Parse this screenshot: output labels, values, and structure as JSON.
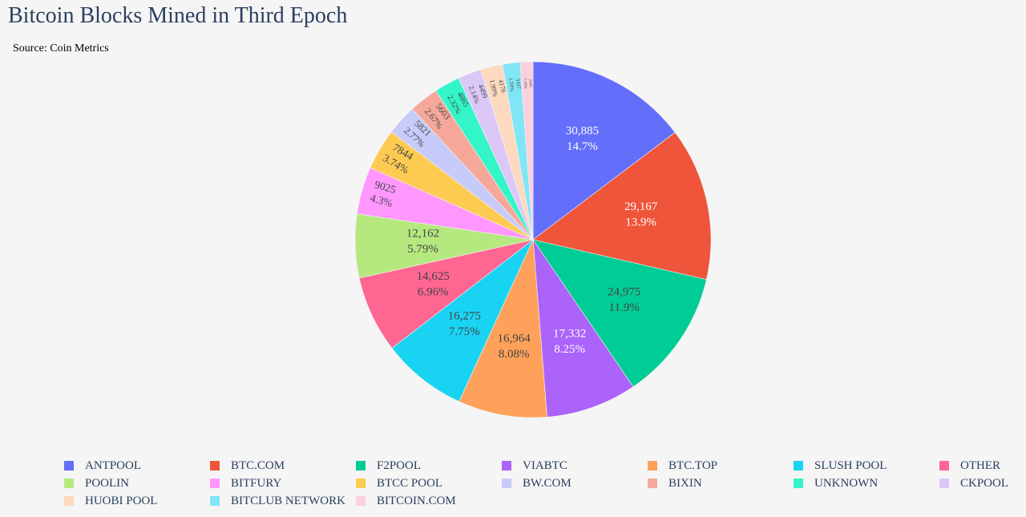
{
  "chart_data": {
    "type": "pie",
    "title": "Bitcoin Blocks Mined in Third Epoch",
    "subtitle": "Source: Coin Metrics",
    "legend_position": "bottom",
    "slices": [
      {
        "label": "ANTPOOL",
        "value": 30885,
        "value_text": "30,885",
        "percent_text": "14.7%",
        "color": "#636efa"
      },
      {
        "label": "BTC.COM",
        "value": 29167,
        "value_text": "29,167",
        "percent_text": "13.9%",
        "color": "#ef553b"
      },
      {
        "label": "F2POOL",
        "value": 24975,
        "value_text": "24,975",
        "percent_text": "11.9%",
        "color": "#00cc96"
      },
      {
        "label": "VIABTC",
        "value": 17332,
        "value_text": "17,332",
        "percent_text": "8.25%",
        "color": "#ab63fa"
      },
      {
        "label": "BTC.TOP",
        "value": 16964,
        "value_text": "16,964",
        "percent_text": "8.08%",
        "color": "#ffa15a"
      },
      {
        "label": "SLUSH POOL",
        "value": 16275,
        "value_text": "16,275",
        "percent_text": "7.75%",
        "color": "#19d3f3"
      },
      {
        "label": "OTHER",
        "value": 14625,
        "value_text": "14,625",
        "percent_text": "6.96%",
        "color": "#ff6692"
      },
      {
        "label": "POOLIN",
        "value": 12162,
        "value_text": "12,162",
        "percent_text": "5.79%",
        "color": "#b6e880"
      },
      {
        "label": "BITFURY",
        "value": 9025,
        "value_text": "9025",
        "percent_text": "4.3%",
        "color": "#ff97ff"
      },
      {
        "label": "BTCC POOL",
        "value": 7844,
        "value_text": "7844",
        "percent_text": "3.74%",
        "color": "#fecb52"
      },
      {
        "label": "BW.COM",
        "value": 5821,
        "value_text": "5821",
        "percent_text": "2.77%",
        "color": "#c6cbf9"
      },
      {
        "label": "BIXIN",
        "value": 5603,
        "value_text": "5603",
        "percent_text": "2.67%",
        "color": "#f5a89a"
      },
      {
        "label": "UNKNOWN",
        "value": 4865,
        "value_text": "4865",
        "percent_text": "2.32%",
        "color": "#33f5c8"
      },
      {
        "label": "CKPOOL",
        "value": 4499,
        "value_text": "4499",
        "percent_text": "2.14%",
        "color": "#dcc8f8"
      },
      {
        "label": "HUOBI POOL",
        "value": 4176,
        "value_text": "4176",
        "percent_text": "1.99%",
        "color": "#fdd9bf"
      },
      {
        "label": "BITCLUB NETWORK",
        "value": 3337,
        "value_text": "3337",
        "percent_text": "1.59%",
        "color": "#80e6f5"
      },
      {
        "label": "BITCOIN.COM",
        "value": 2445,
        "value_text": "2445",
        "percent_text": "1.16%",
        "color": "#fccfe0"
      }
    ]
  }
}
